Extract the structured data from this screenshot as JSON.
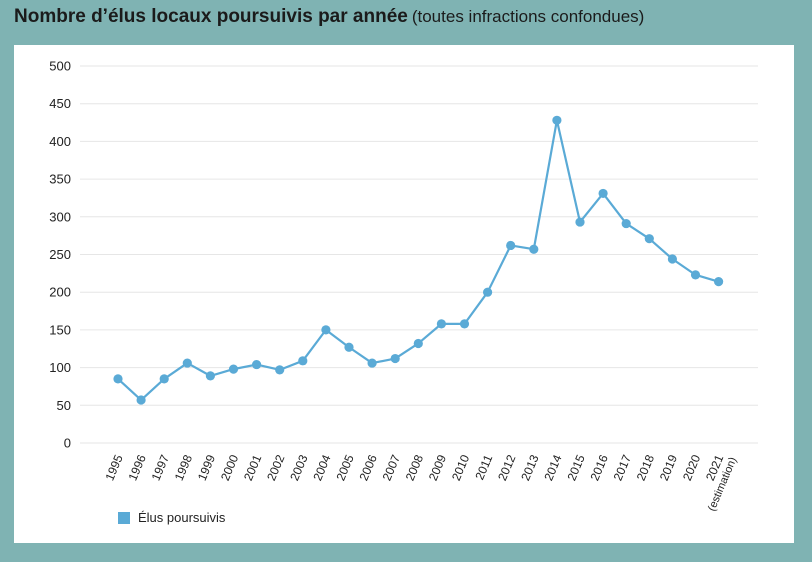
{
  "title": {
    "main": "Nombre d’élus locaux poursuivis par année",
    "sub": "(toutes infractions confondues)"
  },
  "colors": {
    "background": "#7fb3b3",
    "panel": "#ffffff",
    "series": "#5aaad6",
    "grid": "#e6e6e6"
  },
  "chart_data": {
    "type": "line",
    "title": "Nombre d’élus locaux poursuivis par année (toutes infractions confondues)",
    "xlabel": "",
    "ylabel": "",
    "ylim": [
      0,
      500
    ],
    "yticks": [
      0,
      50,
      100,
      150,
      200,
      250,
      300,
      350,
      400,
      450,
      500
    ],
    "grid": true,
    "legend_position": "bottom-left",
    "categories": [
      "1995",
      "1996",
      "1997",
      "1998",
      "1999",
      "2000",
      "2001",
      "2002",
      "2003",
      "2004",
      "2005",
      "2006",
      "2007",
      "2008",
      "2009",
      "2010",
      "2011",
      "2012",
      "2013",
      "2014",
      "2015",
      "2016",
      "2017",
      "2018",
      "2019",
      "2020",
      "2021"
    ],
    "category_note_last": "(estimation)",
    "series": [
      {
        "name": "Élus poursuivis",
        "values": [
          85,
          57,
          85,
          106,
          89,
          98,
          104,
          97,
          109,
          150,
          127,
          106,
          112,
          132,
          158,
          158,
          200,
          262,
          257,
          428,
          293,
          331,
          291,
          271,
          244,
          223,
          214
        ]
      }
    ]
  }
}
